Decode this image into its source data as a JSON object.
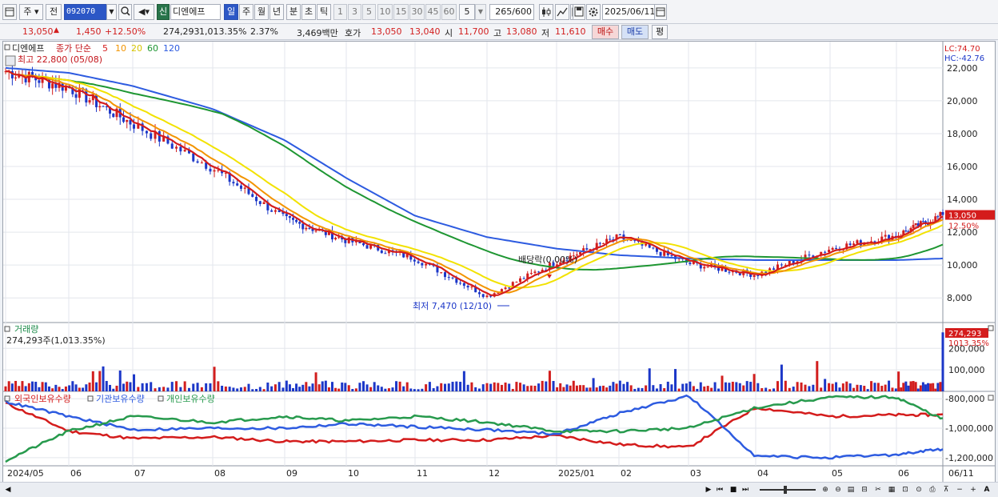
{
  "toolbar": {
    "period_main": "주",
    "prev_label": "전",
    "code": "092070",
    "market_badge": "신",
    "stock_name": "디엔에프",
    "periods": [
      "일",
      "주",
      "월",
      "년",
      "분",
      "초",
      "틱"
    ],
    "selected_period": "일",
    "nums": [
      "1",
      "3",
      "5",
      "10",
      "15",
      "30",
      "45",
      "60"
    ],
    "num_value": "5",
    "count_current": "265",
    "count_total": "/600",
    "date": "2025/06/11"
  },
  "quote": {
    "price": "13,050",
    "change": "1,450",
    "change_pct": "+12.50%",
    "volume": "274,293",
    "volume_ratio": "1,013.35%",
    "turnover": "2.37%",
    "amount": "3,469백만",
    "ask_label": "호가",
    "ask1": "13,050",
    "ask2": "13,040",
    "open_label": "시",
    "open": "11,700",
    "high_label": "고",
    "high": "13,080",
    "low_label": "저",
    "low": "11,610",
    "buy_label": "매수",
    "sell_label": "매도",
    "eval_label": "평"
  },
  "price_panel": {
    "title": "디엔에프",
    "ma_label": "종가 단순",
    "ma_periods": [
      "5",
      "10",
      "20",
      "60",
      "120"
    ],
    "ma_colors": [
      "#d41c1c",
      "#f29400",
      "#f2e200",
      "#1e9632",
      "#2d5be0"
    ],
    "max_label": "최고 22,800 (05/08)",
    "min_label": "최저 7,470 (12/10)",
    "dividend_label": "배당락(0.00%)",
    "lc_label": "LC:74.70",
    "hc_label": "HC:-42.76",
    "last_price_tag": "13,050",
    "last_pct_tag": "12.50%"
  },
  "volume_panel": {
    "title": "거래량",
    "value_label": "274,293주(1,013.35%)",
    "tag_value": "274,293",
    "tag_pct": "1013.35%"
  },
  "holdings_panel": {
    "legend": [
      "외국인보유수량",
      "기관보유수량",
      "개인보유수량"
    ],
    "colors": [
      "#d41c1c",
      "#2d5be0",
      "#279a4d"
    ]
  },
  "xaxis_labels": [
    "2024/05",
    "06",
    "07",
    "08",
    "09",
    "10",
    "11",
    "12",
    "2025/01",
    "02",
    "03",
    "04",
    "05",
    "06",
    "06/11"
  ],
  "chart_data": [
    {
      "type": "line",
      "title": "디엔에프",
      "x": [
        "2024/05",
        "06",
        "07",
        "08",
        "09",
        "10",
        "11",
        "12",
        "2025/01",
        "02",
        "03",
        "04",
        "05",
        "06",
        "06/11"
      ],
      "yticks": [
        "22,000",
        "20,000",
        "18,000",
        "16,000",
        "14,000",
        "12,000",
        "10,000",
        "8,000"
      ],
      "ylim": [
        6500,
        23600
      ],
      "series": [
        {
          "name": "종가",
          "values": [
            21800,
            20800,
            18600,
            15900,
            12800,
            11500,
            10400,
            8100,
            10200,
            11700,
            10100,
            9400,
            11000,
            11800,
            13050
          ]
        },
        {
          "name": "120",
          "values": [
            22000,
            21700,
            20900,
            19500,
            17600,
            15300,
            13000,
            11700,
            11000,
            10600,
            10400,
            10300,
            10300,
            10300,
            10400
          ]
        }
      ]
    },
    {
      "type": "bar",
      "title": "거래량",
      "yticks": [
        "200,000",
        "100,000"
      ],
      "ylim": [
        0,
        320000
      ]
    },
    {
      "type": "line",
      "yticks": [
        "-800,000",
        "-1,000,000",
        "-1,200,000"
      ],
      "ylim": [
        -1255000,
        -750000
      ],
      "series": [
        {
          "name": "외국인보유수량",
          "values": [
            -830000,
            -1020000,
            -1070000,
            -1060000,
            -1090000,
            -1090000,
            -1080000,
            -1080000,
            -1050000,
            -1110000,
            -1130000,
            -860000,
            -920000,
            -910000,
            -910000
          ]
        },
        {
          "name": "기관보유수량",
          "values": [
            -820000,
            -920000,
            -1010000,
            -1000000,
            -1000000,
            -970000,
            -990000,
            -1010000,
            -1040000,
            -900000,
            -780000,
            -1190000,
            -1200000,
            -1180000,
            -1140000
          ]
        },
        {
          "name": "개인보유수량",
          "values": [
            -1220000,
            -1020000,
            -920000,
            -960000,
            -920000,
            -950000,
            -920000,
            -960000,
            -1020000,
            -1020000,
            -1000000,
            -860000,
            -790000,
            -790000,
            -940000
          ]
        }
      ]
    }
  ]
}
